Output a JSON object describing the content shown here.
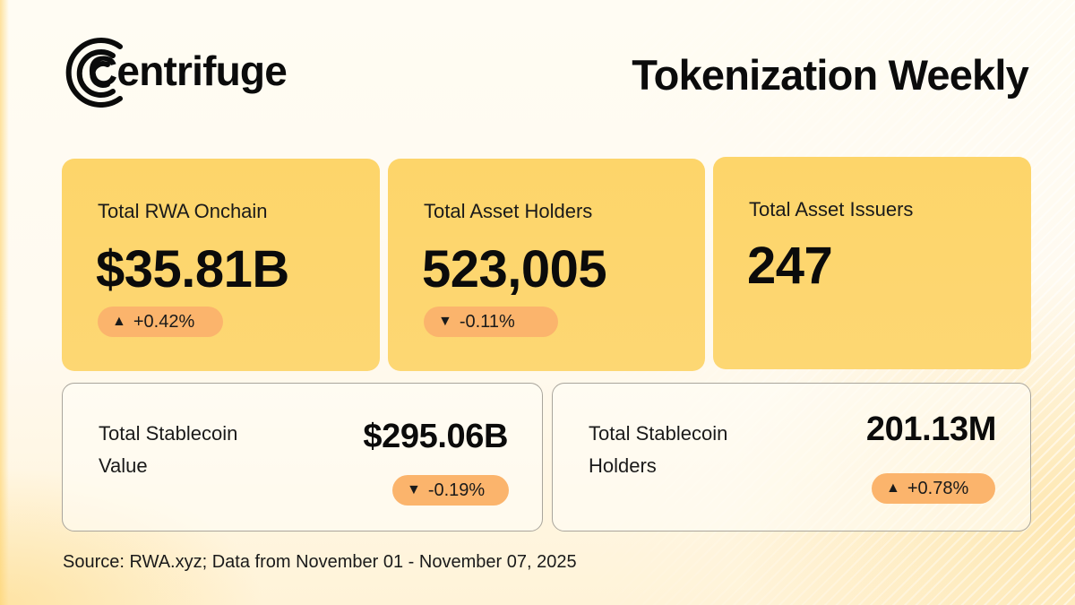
{
  "brand": {
    "name": "Centrifuge",
    "logo_icon": "centrifuge-arcs-icon"
  },
  "title": "Tokenization Weekly",
  "top_cards": [
    {
      "label": "Total RWA Onchain",
      "value": "$35.81B",
      "change": "+0.42%",
      "direction": "up",
      "arrow": "▲"
    },
    {
      "label": "Total Asset Holders",
      "value": "523,005",
      "change": "-0.11%",
      "direction": "down",
      "arrow": "▼"
    },
    {
      "label": "Total Asset Issuers",
      "value": "247"
    }
  ],
  "bottom_cards": [
    {
      "label": "Total Stablecoin Value",
      "value": "$295.06B",
      "change": "-0.19%",
      "direction": "down",
      "arrow": "▼"
    },
    {
      "label": "Total Stablecoin Holders",
      "value": "201.13M",
      "change": "+0.78%",
      "direction": "up",
      "arrow": "▲"
    }
  ],
  "source": "Source: RWA.xyz; Data from November 01 - November 07, 2025",
  "colors": {
    "card_fill": "#fdd56a",
    "badge_fill": "#fbb46c",
    "text": "#0b0b0b",
    "outline": "#a9a59c"
  }
}
